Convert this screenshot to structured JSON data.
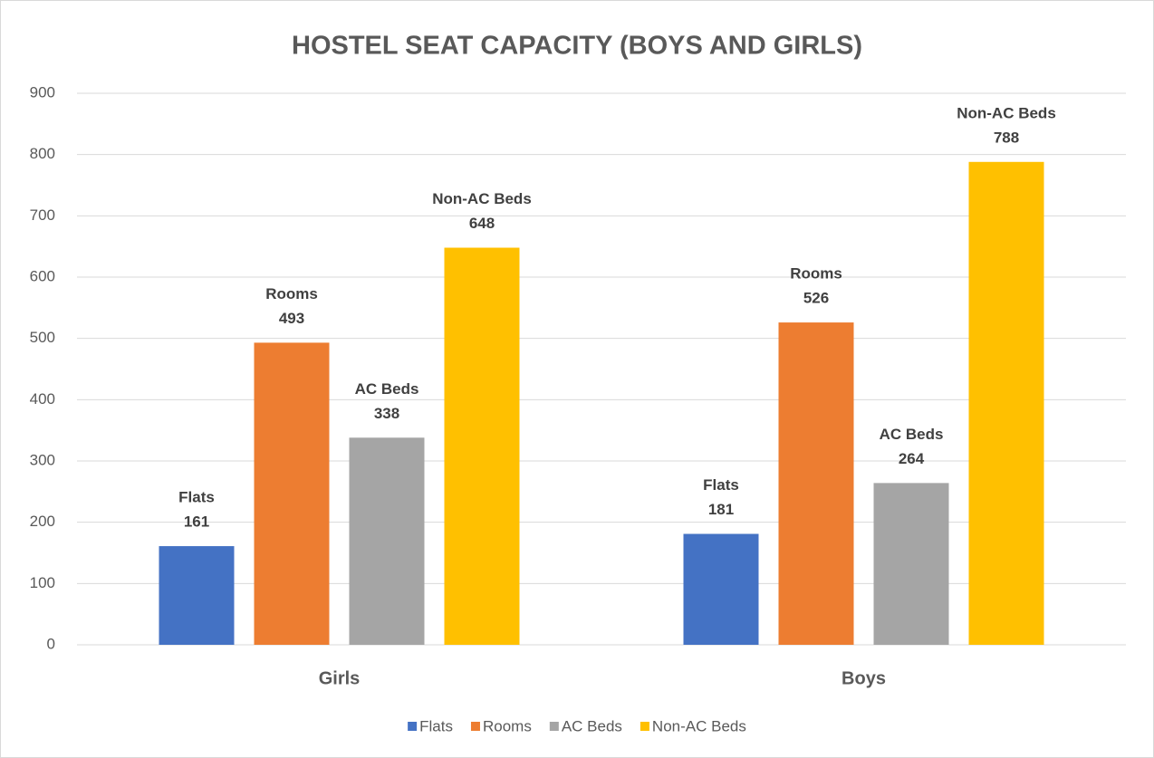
{
  "chart_data": {
    "type": "bar",
    "title": "HOSTEL SEAT CAPACITY (BOYS AND GIRLS)",
    "categories": [
      "Girls",
      "Boys"
    ],
    "series": [
      {
        "name": "Flats",
        "color": "#4472c4",
        "values": [
          161,
          181
        ]
      },
      {
        "name": "Rooms",
        "color": "#ed7d31",
        "values": [
          493,
          526
        ]
      },
      {
        "name": "AC Beds",
        "color": "#a5a5a5",
        "values": [
          338,
          264
        ]
      },
      {
        "name": "Non-AC Beds",
        "color": "#ffc000",
        "values": [
          648,
          788
        ]
      }
    ],
    "ylim": [
      0,
      900
    ],
    "yticks": [
      0,
      100,
      200,
      300,
      400,
      500,
      600,
      700,
      800,
      900
    ],
    "grid": true,
    "legend": "bottom"
  }
}
